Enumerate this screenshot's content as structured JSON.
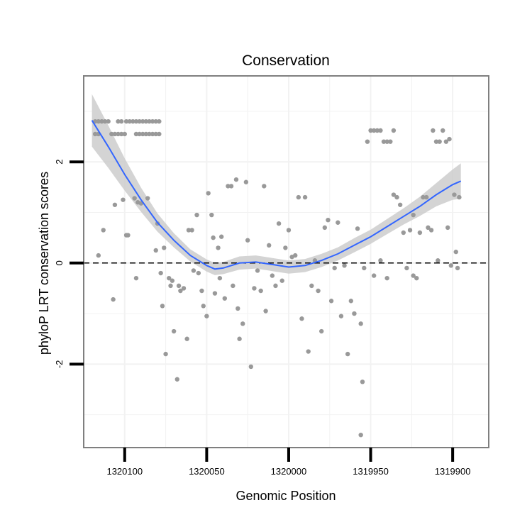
{
  "chart_data": {
    "type": "scatter",
    "title": "Conservation",
    "xlabel": "Genomic Position",
    "ylabel": "phyloP LRT conservation scores",
    "x_reversed": true,
    "xlim": [
      1320125,
      1319878
    ],
    "ylim": [
      -3.65,
      3.7
    ],
    "x_ticks": [
      {
        "value": 1320100,
        "label": "1320100"
      },
      {
        "value": 1320050,
        "label": "1320050"
      },
      {
        "value": 1320000,
        "label": "1320000"
      },
      {
        "value": 1319950,
        "label": "1319950"
      },
      {
        "value": 1319900,
        "label": "1319900"
      }
    ],
    "y_ticks": [
      {
        "value": 2,
        "label": "2"
      },
      {
        "value": 0,
        "label": "0"
      },
      {
        "value": -2,
        "label": "-2"
      }
    ],
    "minor_gridlines_y": [
      3,
      1,
      -1,
      -3
    ],
    "minor_gridlines_x": [
      1320075,
      1320025,
      1319975,
      1319925
    ],
    "reference_line": {
      "y": 0,
      "style": "dashed"
    },
    "colors": {
      "points": "#999999",
      "smooth_line": "#3366ff",
      "confidence_band": "#cccccc",
      "grid": "#f2f2f2",
      "panel_border": "#7f7f7f"
    },
    "series": [
      {
        "name": "phyloP scores",
        "points": [
          {
            "x": 1320118,
            "y": 2.8
          },
          {
            "x": 1320116,
            "y": 2.8
          },
          {
            "x": 1320114,
            "y": 2.8
          },
          {
            "x": 1320112,
            "y": 2.8
          },
          {
            "x": 1320110,
            "y": 2.8
          },
          {
            "x": 1320118,
            "y": 2.55
          },
          {
            "x": 1320116,
            "y": 2.55
          },
          {
            "x": 1320108,
            "y": 2.55
          },
          {
            "x": 1320106,
            "y": 2.55
          },
          {
            "x": 1320104,
            "y": 2.55
          },
          {
            "x": 1320102,
            "y": 2.55
          },
          {
            "x": 1320100,
            "y": 2.55
          },
          {
            "x": 1320104,
            "y": 2.8
          },
          {
            "x": 1320102,
            "y": 2.8
          },
          {
            "x": 1320099,
            "y": 2.8
          },
          {
            "x": 1320097,
            "y": 2.8
          },
          {
            "x": 1320095,
            "y": 2.8
          },
          {
            "x": 1320093,
            "y": 2.8
          },
          {
            "x": 1320091,
            "y": 2.8
          },
          {
            "x": 1320089,
            "y": 2.8
          },
          {
            "x": 1320087,
            "y": 2.8
          },
          {
            "x": 1320085,
            "y": 2.8
          },
          {
            "x": 1320083,
            "y": 2.8
          },
          {
            "x": 1320081,
            "y": 2.8
          },
          {
            "x": 1320079,
            "y": 2.8
          },
          {
            "x": 1320093,
            "y": 2.55
          },
          {
            "x": 1320091,
            "y": 2.55
          },
          {
            "x": 1320089,
            "y": 2.55
          },
          {
            "x": 1320087,
            "y": 2.55
          },
          {
            "x": 1320085,
            "y": 2.55
          },
          {
            "x": 1320083,
            "y": 2.55
          },
          {
            "x": 1320081,
            "y": 2.55
          },
          {
            "x": 1320079,
            "y": 2.55
          },
          {
            "x": 1320116,
            "y": 0.15
          },
          {
            "x": 1320113,
            "y": 0.65
          },
          {
            "x": 1320107,
            "y": -0.72
          },
          {
            "x": 1320106,
            "y": 1.15
          },
          {
            "x": 1320101,
            "y": 1.25
          },
          {
            "x": 1320099,
            "y": 0.55
          },
          {
            "x": 1320098,
            "y": 0.55
          },
          {
            "x": 1320094,
            "y": 1.28
          },
          {
            "x": 1320093,
            "y": -0.3
          },
          {
            "x": 1320092,
            "y": 1.2
          },
          {
            "x": 1320090,
            "y": 1.18
          },
          {
            "x": 1320086,
            "y": 1.28
          },
          {
            "x": 1320080,
            "y": 0.78
          },
          {
            "x": 1320081,
            "y": 0.25
          },
          {
            "x": 1320076,
            "y": 0.3
          },
          {
            "x": 1320078,
            "y": -0.2
          },
          {
            "x": 1320077,
            "y": -0.85
          },
          {
            "x": 1320075,
            "y": -1.8
          },
          {
            "x": 1320073,
            "y": -0.3
          },
          {
            "x": 1320072,
            "y": -0.45
          },
          {
            "x": 1320071,
            "y": -0.35
          },
          {
            "x": 1320070,
            "y": -1.35
          },
          {
            "x": 1320068,
            "y": -2.3
          },
          {
            "x": 1320067,
            "y": -0.45
          },
          {
            "x": 1320066,
            "y": -0.55
          },
          {
            "x": 1320064,
            "y": -0.5
          },
          {
            "x": 1320062,
            "y": -1.5
          },
          {
            "x": 1320061,
            "y": 0.65
          },
          {
            "x": 1320059,
            "y": 0.65
          },
          {
            "x": 1320058,
            "y": -0.15
          },
          {
            "x": 1320056,
            "y": 0.95
          },
          {
            "x": 1320055,
            "y": -0.2
          },
          {
            "x": 1320053,
            "y": -0.55
          },
          {
            "x": 1320052,
            "y": -0.85
          },
          {
            "x": 1320050,
            "y": -1.05
          },
          {
            "x": 1320049,
            "y": 1.38
          },
          {
            "x": 1320047,
            "y": 0.95
          },
          {
            "x": 1320046,
            "y": 0.5
          },
          {
            "x": 1320045,
            "y": -0.6
          },
          {
            "x": 1320043,
            "y": 0.3
          },
          {
            "x": 1320042,
            "y": -0.3
          },
          {
            "x": 1320041,
            "y": 0.52
          },
          {
            "x": 1320039,
            "y": -0.7
          },
          {
            "x": 1320037,
            "y": 1.52
          },
          {
            "x": 1320035,
            "y": 1.52
          },
          {
            "x": 1320034,
            "y": -0.45
          },
          {
            "x": 1320032,
            "y": 1.65
          },
          {
            "x": 1320031,
            "y": -0.9
          },
          {
            "x": 1320030,
            "y": -1.5
          },
          {
            "x": 1320028,
            "y": -1.2
          },
          {
            "x": 1320026,
            "y": 1.6
          },
          {
            "x": 1320025,
            "y": 0.45
          },
          {
            "x": 1320023,
            "y": -2.05
          },
          {
            "x": 1320021,
            "y": -0.5
          },
          {
            "x": 1320019,
            "y": -0.15
          },
          {
            "x": 1320017,
            "y": -0.55
          },
          {
            "x": 1320015,
            "y": 1.52
          },
          {
            "x": 1320014,
            "y": -0.95
          },
          {
            "x": 1320012,
            "y": 0.35
          },
          {
            "x": 1320010,
            "y": -0.25
          },
          {
            "x": 1320008,
            "y": -0.45
          },
          {
            "x": 1320006,
            "y": 0.78
          },
          {
            "x": 1320004,
            "y": -0.35
          },
          {
            "x": 1320002,
            "y": 0.3
          },
          {
            "x": 1320000,
            "y": 0.65
          },
          {
            "x": 1319998,
            "y": 0.12
          },
          {
            "x": 1319996,
            "y": 0.15
          },
          {
            "x": 1319994,
            "y": 1.3
          },
          {
            "x": 1319992,
            "y": -1.1
          },
          {
            "x": 1319990,
            "y": 1.3
          },
          {
            "x": 1319988,
            "y": -1.75
          },
          {
            "x": 1319986,
            "y": -0.45
          },
          {
            "x": 1319984,
            "y": 0.05
          },
          {
            "x": 1319982,
            "y": -0.55
          },
          {
            "x": 1319980,
            "y": -1.35
          },
          {
            "x": 1319978,
            "y": 0.7
          },
          {
            "x": 1319976,
            "y": 0.85
          },
          {
            "x": 1319974,
            "y": -0.75
          },
          {
            "x": 1319972,
            "y": -0.1
          },
          {
            "x": 1319970,
            "y": 0.8
          },
          {
            "x": 1319968,
            "y": -1.05
          },
          {
            "x": 1319966,
            "y": -0.05
          },
          {
            "x": 1319964,
            "y": -1.8
          },
          {
            "x": 1319962,
            "y": -0.75
          },
          {
            "x": 1319960,
            "y": -1.0
          },
          {
            "x": 1319958,
            "y": 0.68
          },
          {
            "x": 1319956,
            "y": -1.2
          },
          {
            "x": 1319955,
            "y": -2.35
          },
          {
            "x": 1319956,
            "y": -3.4
          },
          {
            "x": 1319954,
            "y": -0.1
          },
          {
            "x": 1319952,
            "y": 2.4
          },
          {
            "x": 1319950,
            "y": 2.62
          },
          {
            "x": 1319948,
            "y": 2.62
          },
          {
            "x": 1319946,
            "y": 2.62
          },
          {
            "x": 1319944,
            "y": 2.62
          },
          {
            "x": 1319942,
            "y": 2.4
          },
          {
            "x": 1319940,
            "y": 2.4
          },
          {
            "x": 1319938,
            "y": 2.4
          },
          {
            "x": 1319936,
            "y": 2.62
          },
          {
            "x": 1319948,
            "y": -0.25
          },
          {
            "x": 1319944,
            "y": 0.05
          },
          {
            "x": 1319940,
            "y": -0.3
          },
          {
            "x": 1319936,
            "y": 1.35
          },
          {
            "x": 1319934,
            "y": 1.3
          },
          {
            "x": 1319932,
            "y": 1.15
          },
          {
            "x": 1319930,
            "y": 0.6
          },
          {
            "x": 1319928,
            "y": -0.1
          },
          {
            "x": 1319926,
            "y": 0.65
          },
          {
            "x": 1319924,
            "y": -0.25
          },
          {
            "x": 1319922,
            "y": -0.3
          },
          {
            "x": 1319920,
            "y": 0.6
          },
          {
            "x": 1319918,
            "y": 1.3
          },
          {
            "x": 1319916,
            "y": 1.3
          },
          {
            "x": 1319915,
            "y": 0.7
          },
          {
            "x": 1319913,
            "y": 0.65
          },
          {
            "x": 1319912,
            "y": 2.62
          },
          {
            "x": 1319910,
            "y": 2.4
          },
          {
            "x": 1319908,
            "y": 2.4
          },
          {
            "x": 1319906,
            "y": 2.62
          },
          {
            "x": 1319904,
            "y": 2.4
          },
          {
            "x": 1319902,
            "y": 2.45
          },
          {
            "x": 1319903,
            "y": 0.7
          },
          {
            "x": 1319901,
            "y": -0.05
          },
          {
            "x": 1319899,
            "y": 1.35
          },
          {
            "x": 1319898,
            "y": 0.22
          },
          {
            "x": 1319897,
            "y": -0.1
          },
          {
            "x": 1319896,
            "y": 1.3
          },
          {
            "x": 1319909,
            "y": 0.05
          },
          {
            "x": 1319924,
            "y": 0.95
          }
        ]
      }
    ],
    "smooth": {
      "method": "loess",
      "fit": [
        {
          "x": 1320120,
          "y": 2.82
        },
        {
          "x": 1320110,
          "y": 2.3
        },
        {
          "x": 1320100,
          "y": 1.75
        },
        {
          "x": 1320090,
          "y": 1.25
        },
        {
          "x": 1320080,
          "y": 0.8
        },
        {
          "x": 1320070,
          "y": 0.45
        },
        {
          "x": 1320060,
          "y": 0.15
        },
        {
          "x": 1320050,
          "y": -0.05
        },
        {
          "x": 1320045,
          "y": -0.12
        },
        {
          "x": 1320040,
          "y": -0.1
        },
        {
          "x": 1320030,
          "y": 0.0
        },
        {
          "x": 1320020,
          "y": 0.02
        },
        {
          "x": 1320010,
          "y": -0.03
        },
        {
          "x": 1320000,
          "y": -0.08
        },
        {
          "x": 1319990,
          "y": -0.05
        },
        {
          "x": 1319980,
          "y": 0.05
        },
        {
          "x": 1319970,
          "y": 0.18
        },
        {
          "x": 1319960,
          "y": 0.35
        },
        {
          "x": 1319950,
          "y": 0.52
        },
        {
          "x": 1319940,
          "y": 0.72
        },
        {
          "x": 1319930,
          "y": 0.92
        },
        {
          "x": 1319920,
          "y": 1.12
        },
        {
          "x": 1319910,
          "y": 1.35
        },
        {
          "x": 1319900,
          "y": 1.55
        },
        {
          "x": 1319895,
          "y": 1.62
        }
      ],
      "se": [
        0.52,
        0.42,
        0.32,
        0.24,
        0.18,
        0.14,
        0.12,
        0.12,
        0.12,
        0.12,
        0.13,
        0.13,
        0.13,
        0.13,
        0.13,
        0.13,
        0.13,
        0.14,
        0.14,
        0.15,
        0.16,
        0.19,
        0.23,
        0.3,
        0.35
      ]
    }
  }
}
